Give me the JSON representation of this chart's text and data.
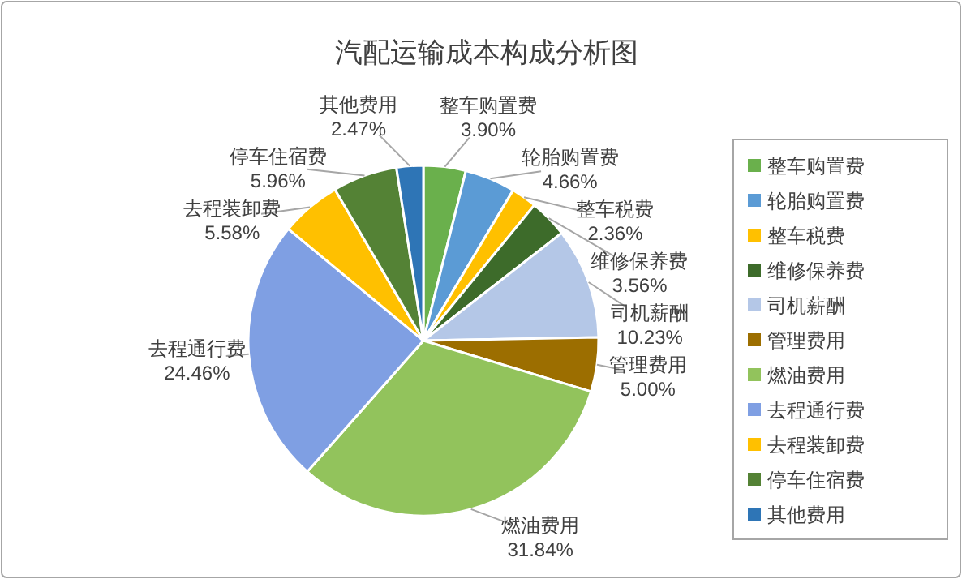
{
  "chart_data": {
    "type": "pie",
    "title": "汽配运输成本构成分析图",
    "categories": [
      "整车购置费",
      "轮胎购置费",
      "整车税费",
      "维修保养费",
      "司机薪酬",
      "管理费用",
      "燃油费用",
      "去程通行费",
      "去程装卸费",
      "停车住宿费",
      "其他费用"
    ],
    "values": [
      3.9,
      4.66,
      2.36,
      3.56,
      10.23,
      5.0,
      31.84,
      24.46,
      5.58,
      5.96,
      2.47
    ],
    "value_labels": [
      "3.90%",
      "4.66%",
      "2.36%",
      "3.56%",
      "10.23%",
      "5.00%",
      "31.84%",
      "24.46%",
      "5.58%",
      "5.96%",
      "2.47%"
    ],
    "colors": [
      "#6ab04c",
      "#5b9bd5",
      "#ffc000",
      "#3d6b2a",
      "#b4c7e7",
      "#9c6e00",
      "#92c35c",
      "#7f9fe3",
      "#ffc000",
      "#548235",
      "#2e75b6"
    ],
    "legend": "right"
  }
}
